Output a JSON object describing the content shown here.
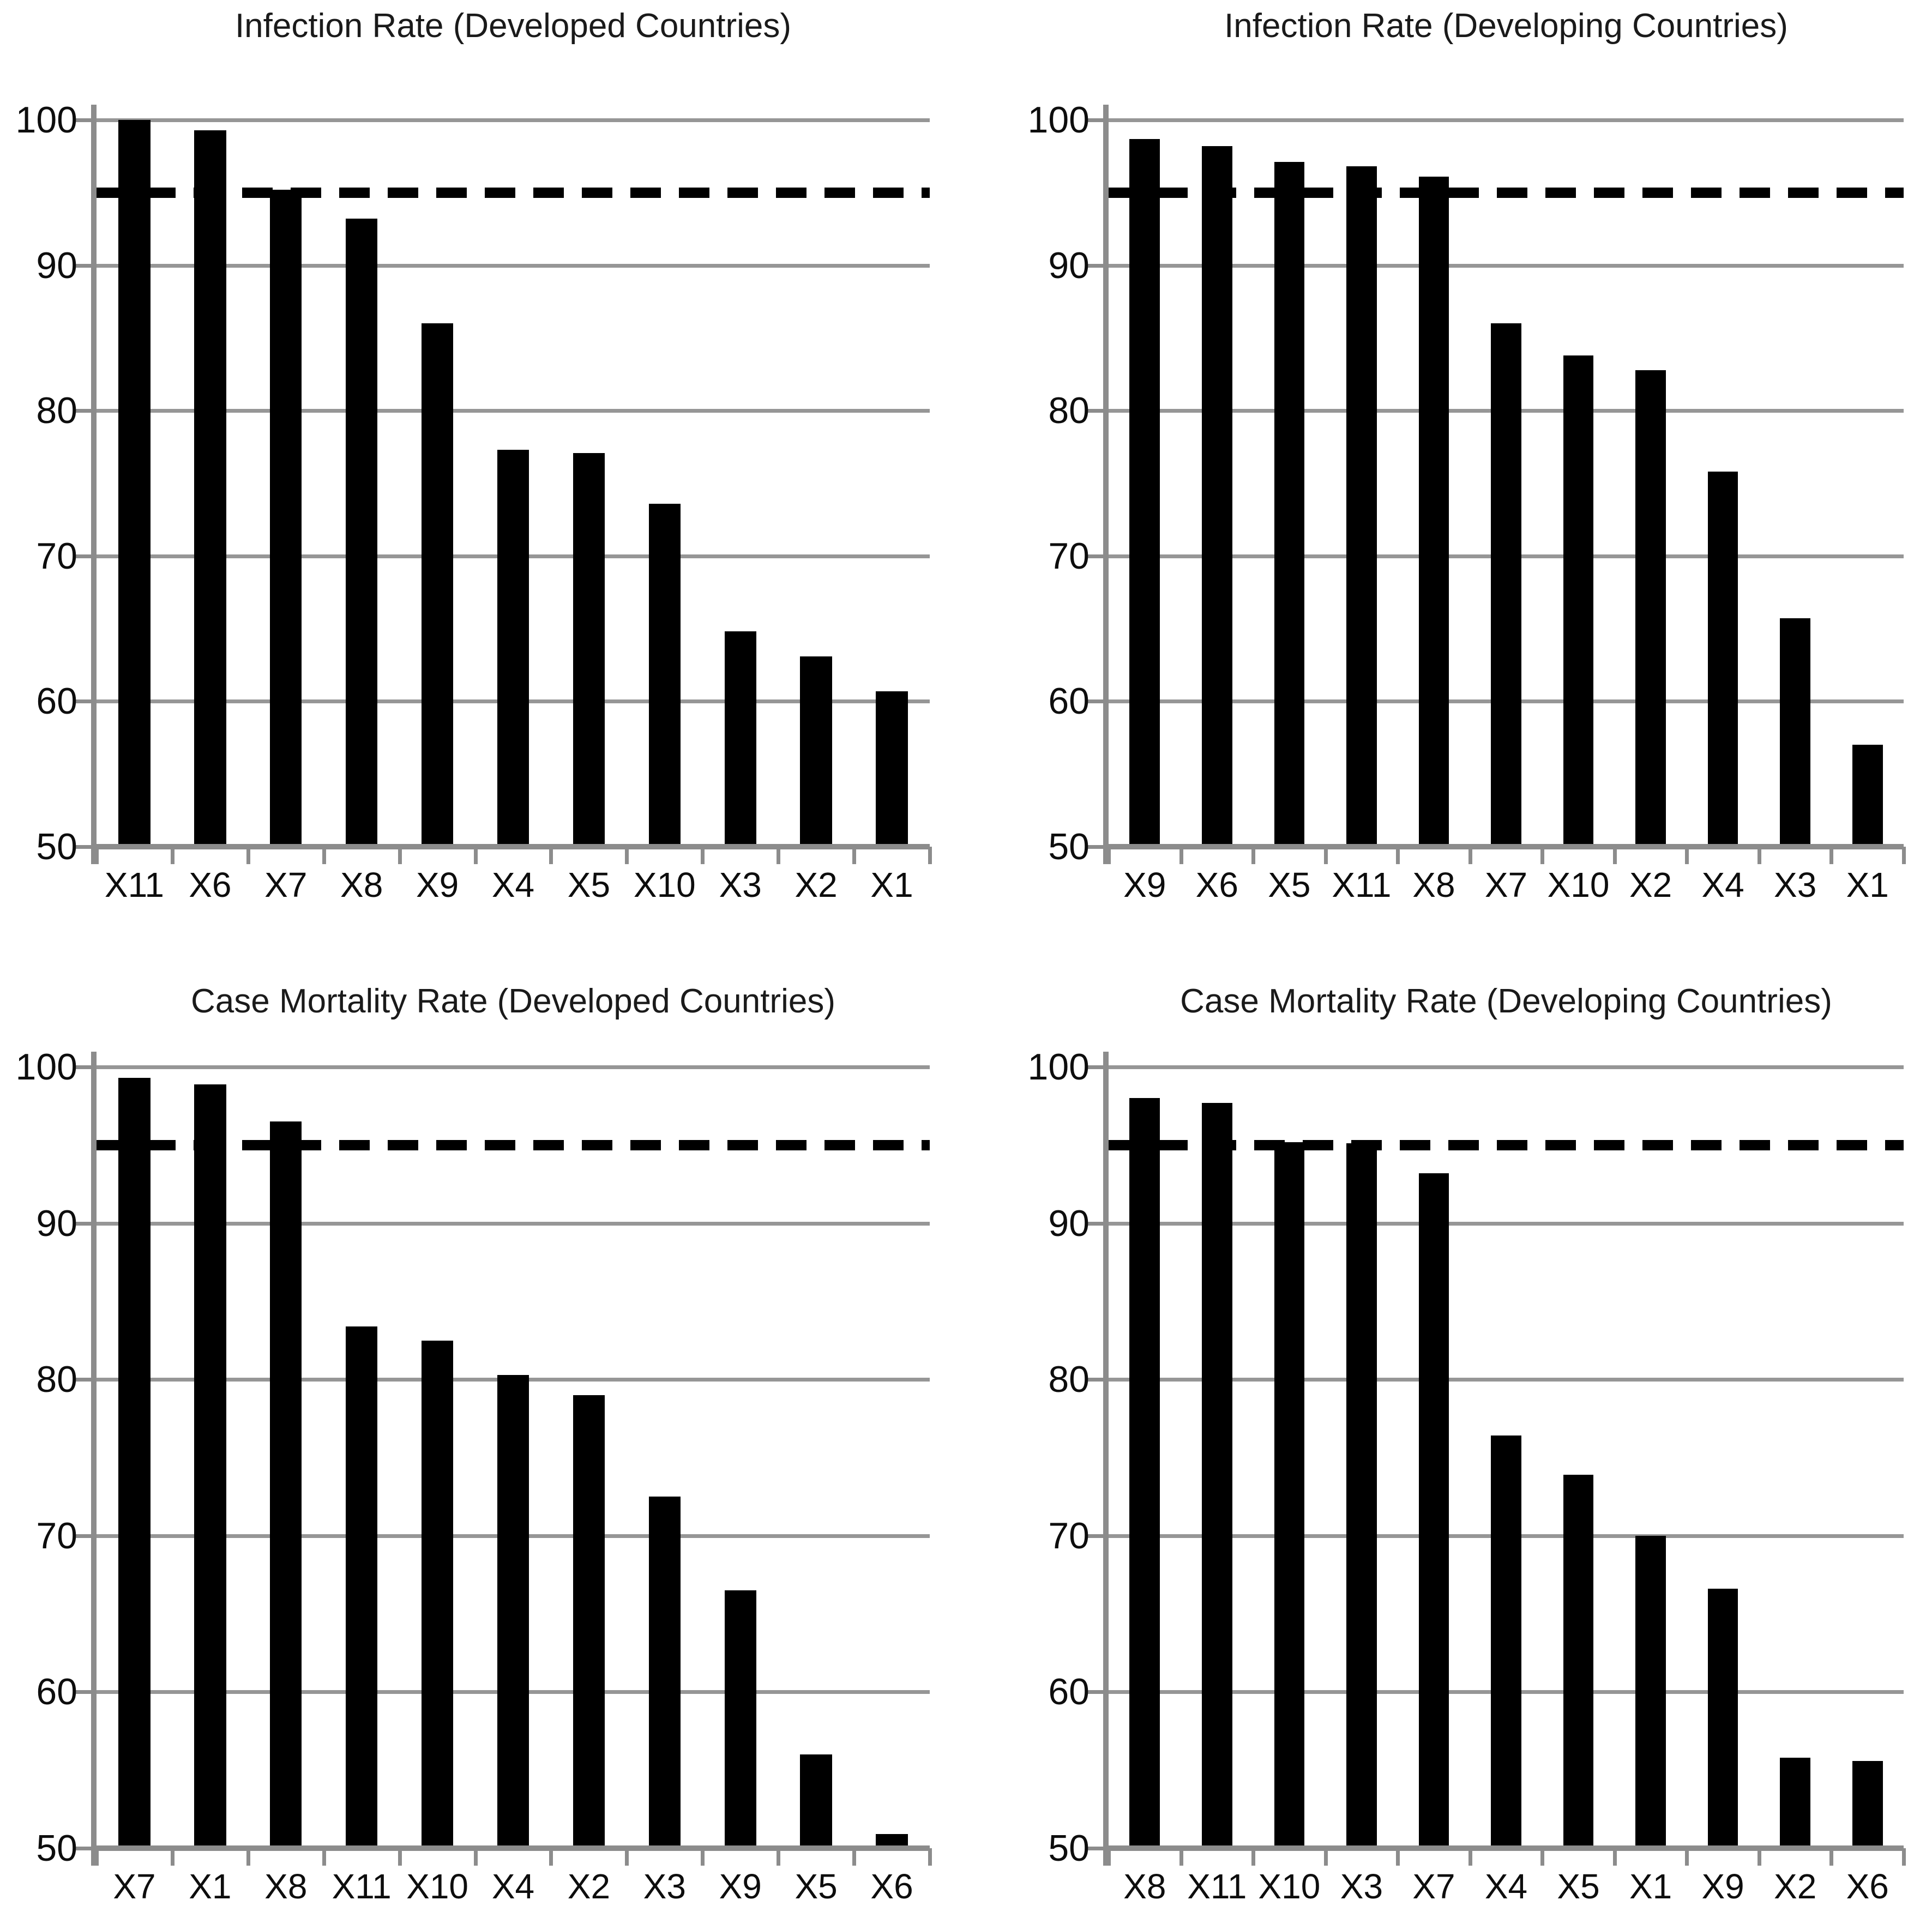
{
  "figure_title": "",
  "reference_line_value": 95,
  "colors": {
    "bar": "#000000",
    "gridline": "#969696",
    "axis": "#8c8c8c",
    "text": "#0d0d0d",
    "reference_line": "#000000",
    "background": "#ffffff"
  },
  "chart_data": [
    {
      "type": "bar",
      "title": "Infection Rate (Developed Countries)",
      "categories": [
        "X11",
        "X6",
        "X7",
        "X8",
        "X9",
        "X4",
        "X5",
        "X10",
        "X3",
        "X2",
        "X1"
      ],
      "values": [
        100,
        99.3,
        95.2,
        93.2,
        86.0,
        77.3,
        77.1,
        73.6,
        64.8,
        63.1,
        60.7
      ],
      "ref_line": 95,
      "xlabel": "",
      "ylabel": "",
      "ylim": [
        50,
        100
      ],
      "yticks": [
        50,
        60,
        70,
        80,
        90,
        100
      ],
      "grid": true,
      "legend": "none"
    },
    {
      "type": "bar",
      "title": "Infection Rate (Developing Countries)",
      "categories": [
        "X9",
        "X6",
        "X5",
        "X11",
        "X8",
        "X7",
        "X10",
        "X2",
        "X4",
        "X3",
        "X1"
      ],
      "values": [
        98.7,
        98.2,
        97.1,
        96.8,
        96.1,
        86.0,
        83.8,
        82.8,
        75.8,
        65.7,
        57.0
      ],
      "ref_line": 95,
      "xlabel": "",
      "ylabel": "",
      "ylim": [
        50,
        100
      ],
      "yticks": [
        50,
        60,
        70,
        80,
        90,
        100
      ],
      "grid": true,
      "legend": "none"
    },
    {
      "type": "bar",
      "title": "Case Mortality Rate (Developed Countries)",
      "categories": [
        "X7",
        "X1",
        "X8",
        "X11",
        "X10",
        "X4",
        "X2",
        "X3",
        "X9",
        "X5",
        "X6"
      ],
      "values": [
        99.3,
        98.9,
        96.5,
        83.4,
        82.5,
        80.3,
        79.0,
        72.5,
        66.5,
        56.0,
        50.9
      ],
      "ref_line": 95,
      "xlabel": "",
      "ylabel": "",
      "ylim": [
        50,
        100
      ],
      "yticks": [
        50,
        60,
        70,
        80,
        90,
        100
      ],
      "grid": true,
      "legend": "none"
    },
    {
      "type": "bar",
      "title": "Case Mortality Rate (Developing Countries)",
      "categories": [
        "X8",
        "X11",
        "X10",
        "X3",
        "X7",
        "X4",
        "X5",
        "X1",
        "X9",
        "X2",
        "X6"
      ],
      "values": [
        98.0,
        97.7,
        95.2,
        95.1,
        93.2,
        76.4,
        73.9,
        70.0,
        66.6,
        55.8,
        55.6
      ],
      "ref_line": 95,
      "xlabel": "",
      "ylabel": "",
      "ylim": [
        50,
        100
      ],
      "yticks": [
        50,
        60,
        70,
        80,
        90,
        100
      ],
      "grid": true,
      "legend": "none"
    }
  ]
}
